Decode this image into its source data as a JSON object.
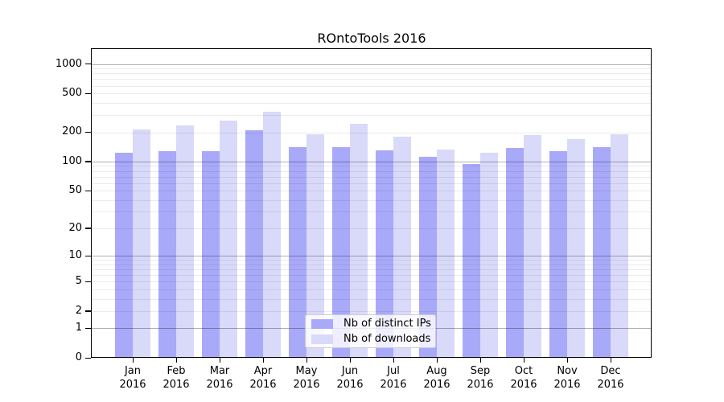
{
  "title": "ROntoTools 2016",
  "legend": {
    "entries": [
      {
        "label": "Nb of distinct IPs",
        "color": "#a9a9fa"
      },
      {
        "label": "Nb of downloads",
        "color": "#d9d9fa"
      }
    ]
  },
  "chart_data": {
    "type": "bar",
    "title": "ROntoTools 2016",
    "categories": [
      "Jan 2016",
      "Feb 2016",
      "Mar 2016",
      "Apr 2016",
      "May 2016",
      "Jun 2016",
      "Jul 2016",
      "Aug 2016",
      "Sep 2016",
      "Oct 2016",
      "Nov 2016",
      "Dec 2016"
    ],
    "series": [
      {
        "name": "Nb of distinct IPs",
        "color": "#a9a9fa",
        "values": [
          123,
          129,
          129,
          208,
          142,
          140,
          130,
          111,
          95,
          137,
          129,
          140
        ]
      },
      {
        "name": "Nb of downloads",
        "color": "#d9d9fa",
        "values": [
          212,
          236,
          265,
          322,
          190,
          245,
          180,
          133,
          123,
          188,
          169,
          192
        ]
      }
    ],
    "xlabel": "",
    "ylabel": "",
    "y_scale": "log1p",
    "y_ticks": [
      0,
      1,
      2,
      5,
      10,
      20,
      50,
      100,
      200,
      500,
      1000
    ],
    "ylim": [
      0,
      1400
    ],
    "grid": "horizontal log major+minor",
    "legend_position": "bottom-center-inside"
  }
}
